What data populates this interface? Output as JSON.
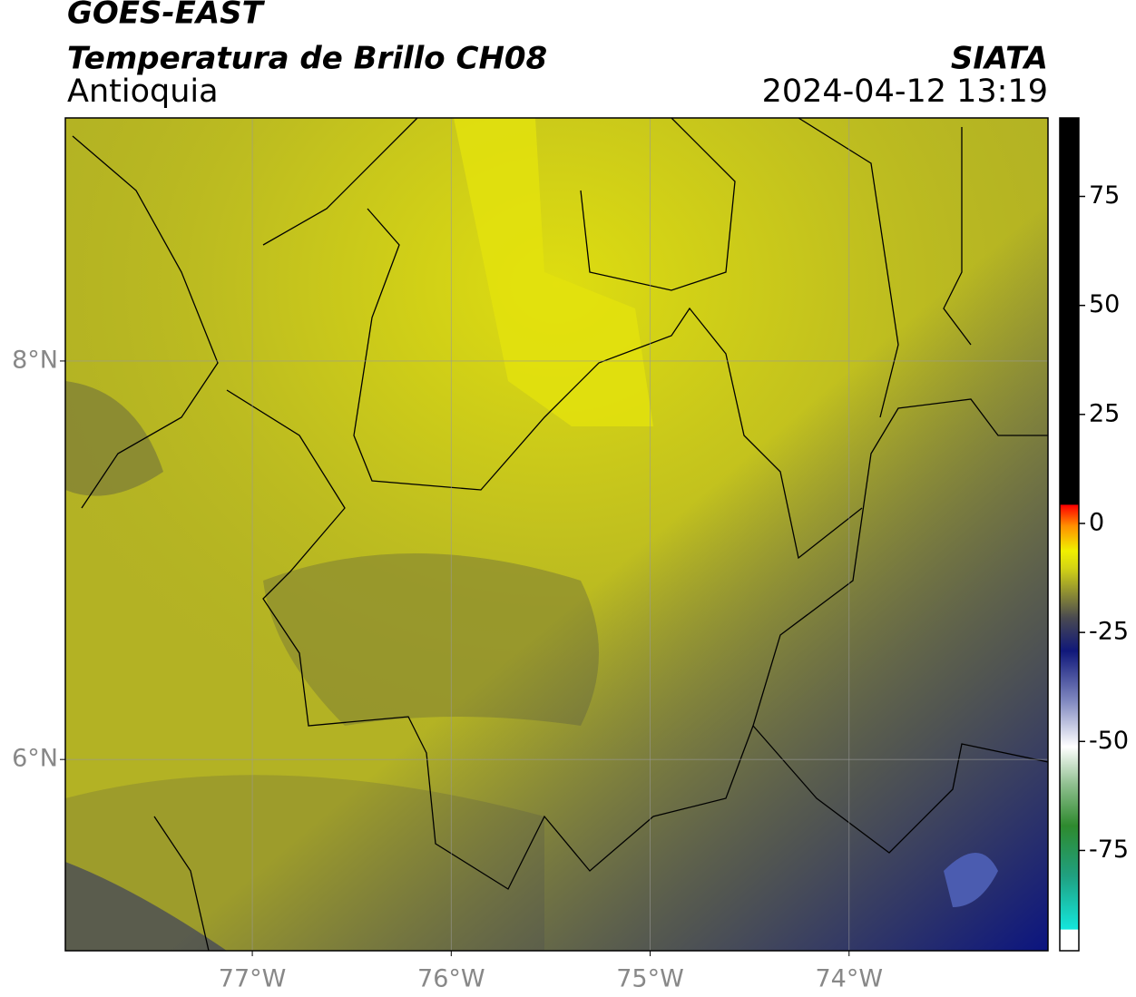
{
  "header": {
    "satellite": "GOES-EAST",
    "product": "Temperatura de Brillo CH08",
    "region": "Antioquia",
    "source": "SIATA",
    "datetime": "2024-04-12 13:19"
  },
  "map": {
    "xlim": [
      -77.94,
      -73.0
    ],
    "ylim": [
      5.04,
      9.22
    ],
    "xticks": [
      {
        "value": -77,
        "label": "77°W"
      },
      {
        "value": -76,
        "label": "76°W"
      },
      {
        "value": -75,
        "label": "75°W"
      },
      {
        "value": -74,
        "label": "74°W"
      }
    ],
    "yticks": [
      {
        "value": 8,
        "label": "8°N"
      },
      {
        "value": 6,
        "label": "6°N"
      }
    ],
    "grid": true
  },
  "colorbar": {
    "lim": [
      -98,
      93
    ],
    "ticks": [
      75,
      50,
      25,
      0,
      -25,
      -50,
      -75
    ]
  }
}
